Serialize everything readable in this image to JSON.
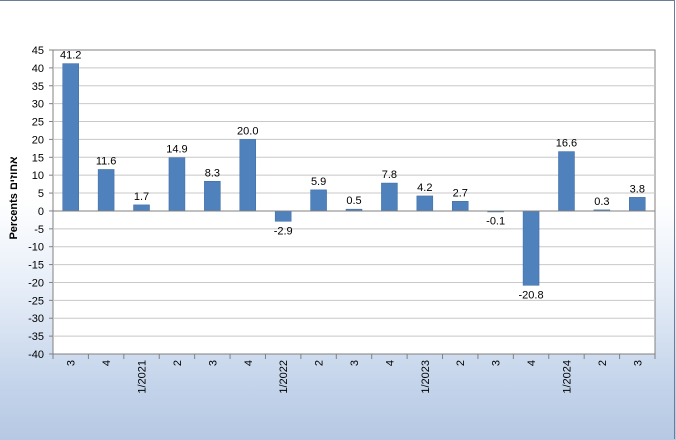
{
  "chart_data": {
    "type": "bar",
    "title": "",
    "xlabel": "",
    "ylabel": "Percents אחוזים",
    "ylim": [
      -40,
      45
    ],
    "yticks": [
      45,
      40,
      35,
      30,
      25,
      20,
      15,
      10,
      5,
      0,
      -5,
      -10,
      -15,
      -20,
      -25,
      -30,
      -35,
      -40
    ],
    "grid": "horizontal",
    "bar_color": "#4f81bd",
    "categories": [
      "3",
      "4",
      "1/2021",
      "2",
      "3",
      "4",
      "1/2022",
      "2",
      "3",
      "4",
      "1/2023",
      "2",
      "3",
      "4",
      "1/2024",
      "2",
      "3"
    ],
    "values": [
      41.2,
      11.6,
      1.7,
      14.9,
      8.3,
      20.0,
      -2.9,
      5.9,
      0.5,
      7.8,
      4.2,
      2.7,
      -0.1,
      -20.8,
      16.6,
      0.3,
      3.8
    ],
    "data_labels": [
      "41.2",
      "11.6",
      "1.7",
      "14.9",
      "8.3",
      "20.0",
      "-2.9",
      "5.9",
      "0.5",
      "7.8",
      "4.2",
      "2.7",
      "-0.1",
      "-20.8",
      "16.6",
      "0.3",
      "3.8"
    ]
  }
}
